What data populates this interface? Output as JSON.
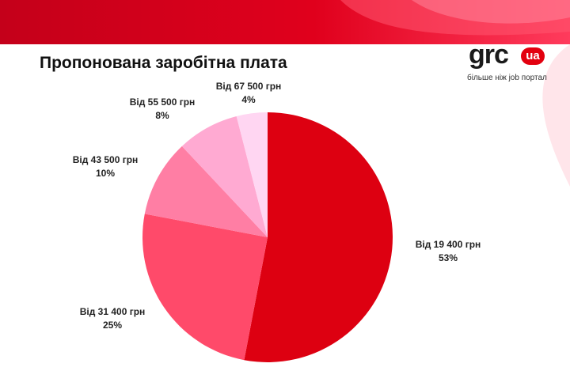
{
  "title": "Пропонована заробітна плата",
  "logo": {
    "main": "grc",
    "badge": "ua",
    "tagline": "більше ніж job портал"
  },
  "colors": {
    "brand": "#e3000f",
    "banner": "#d8001a"
  },
  "chart_data": {
    "type": "pie",
    "title": "Пропонована заробітна плата",
    "slices": [
      {
        "label": "Від 19 400 грн",
        "percent_label": "53%",
        "value": 53,
        "color": "#dd0011"
      },
      {
        "label": "Від 31 400 грн",
        "percent_label": "25%",
        "value": 25,
        "color": "#ff4a6a"
      },
      {
        "label": "Від 43 500 грн",
        "percent_label": "10%",
        "value": 10,
        "color": "#ff7ea4"
      },
      {
        "label": "Від 55 500 грн",
        "percent_label": "8%",
        "value": 8,
        "color": "#ffaad2"
      },
      {
        "label": "Від 67 500 грн",
        "percent_label": "4%",
        "value": 4,
        "color": "#ffd6f2"
      }
    ]
  }
}
